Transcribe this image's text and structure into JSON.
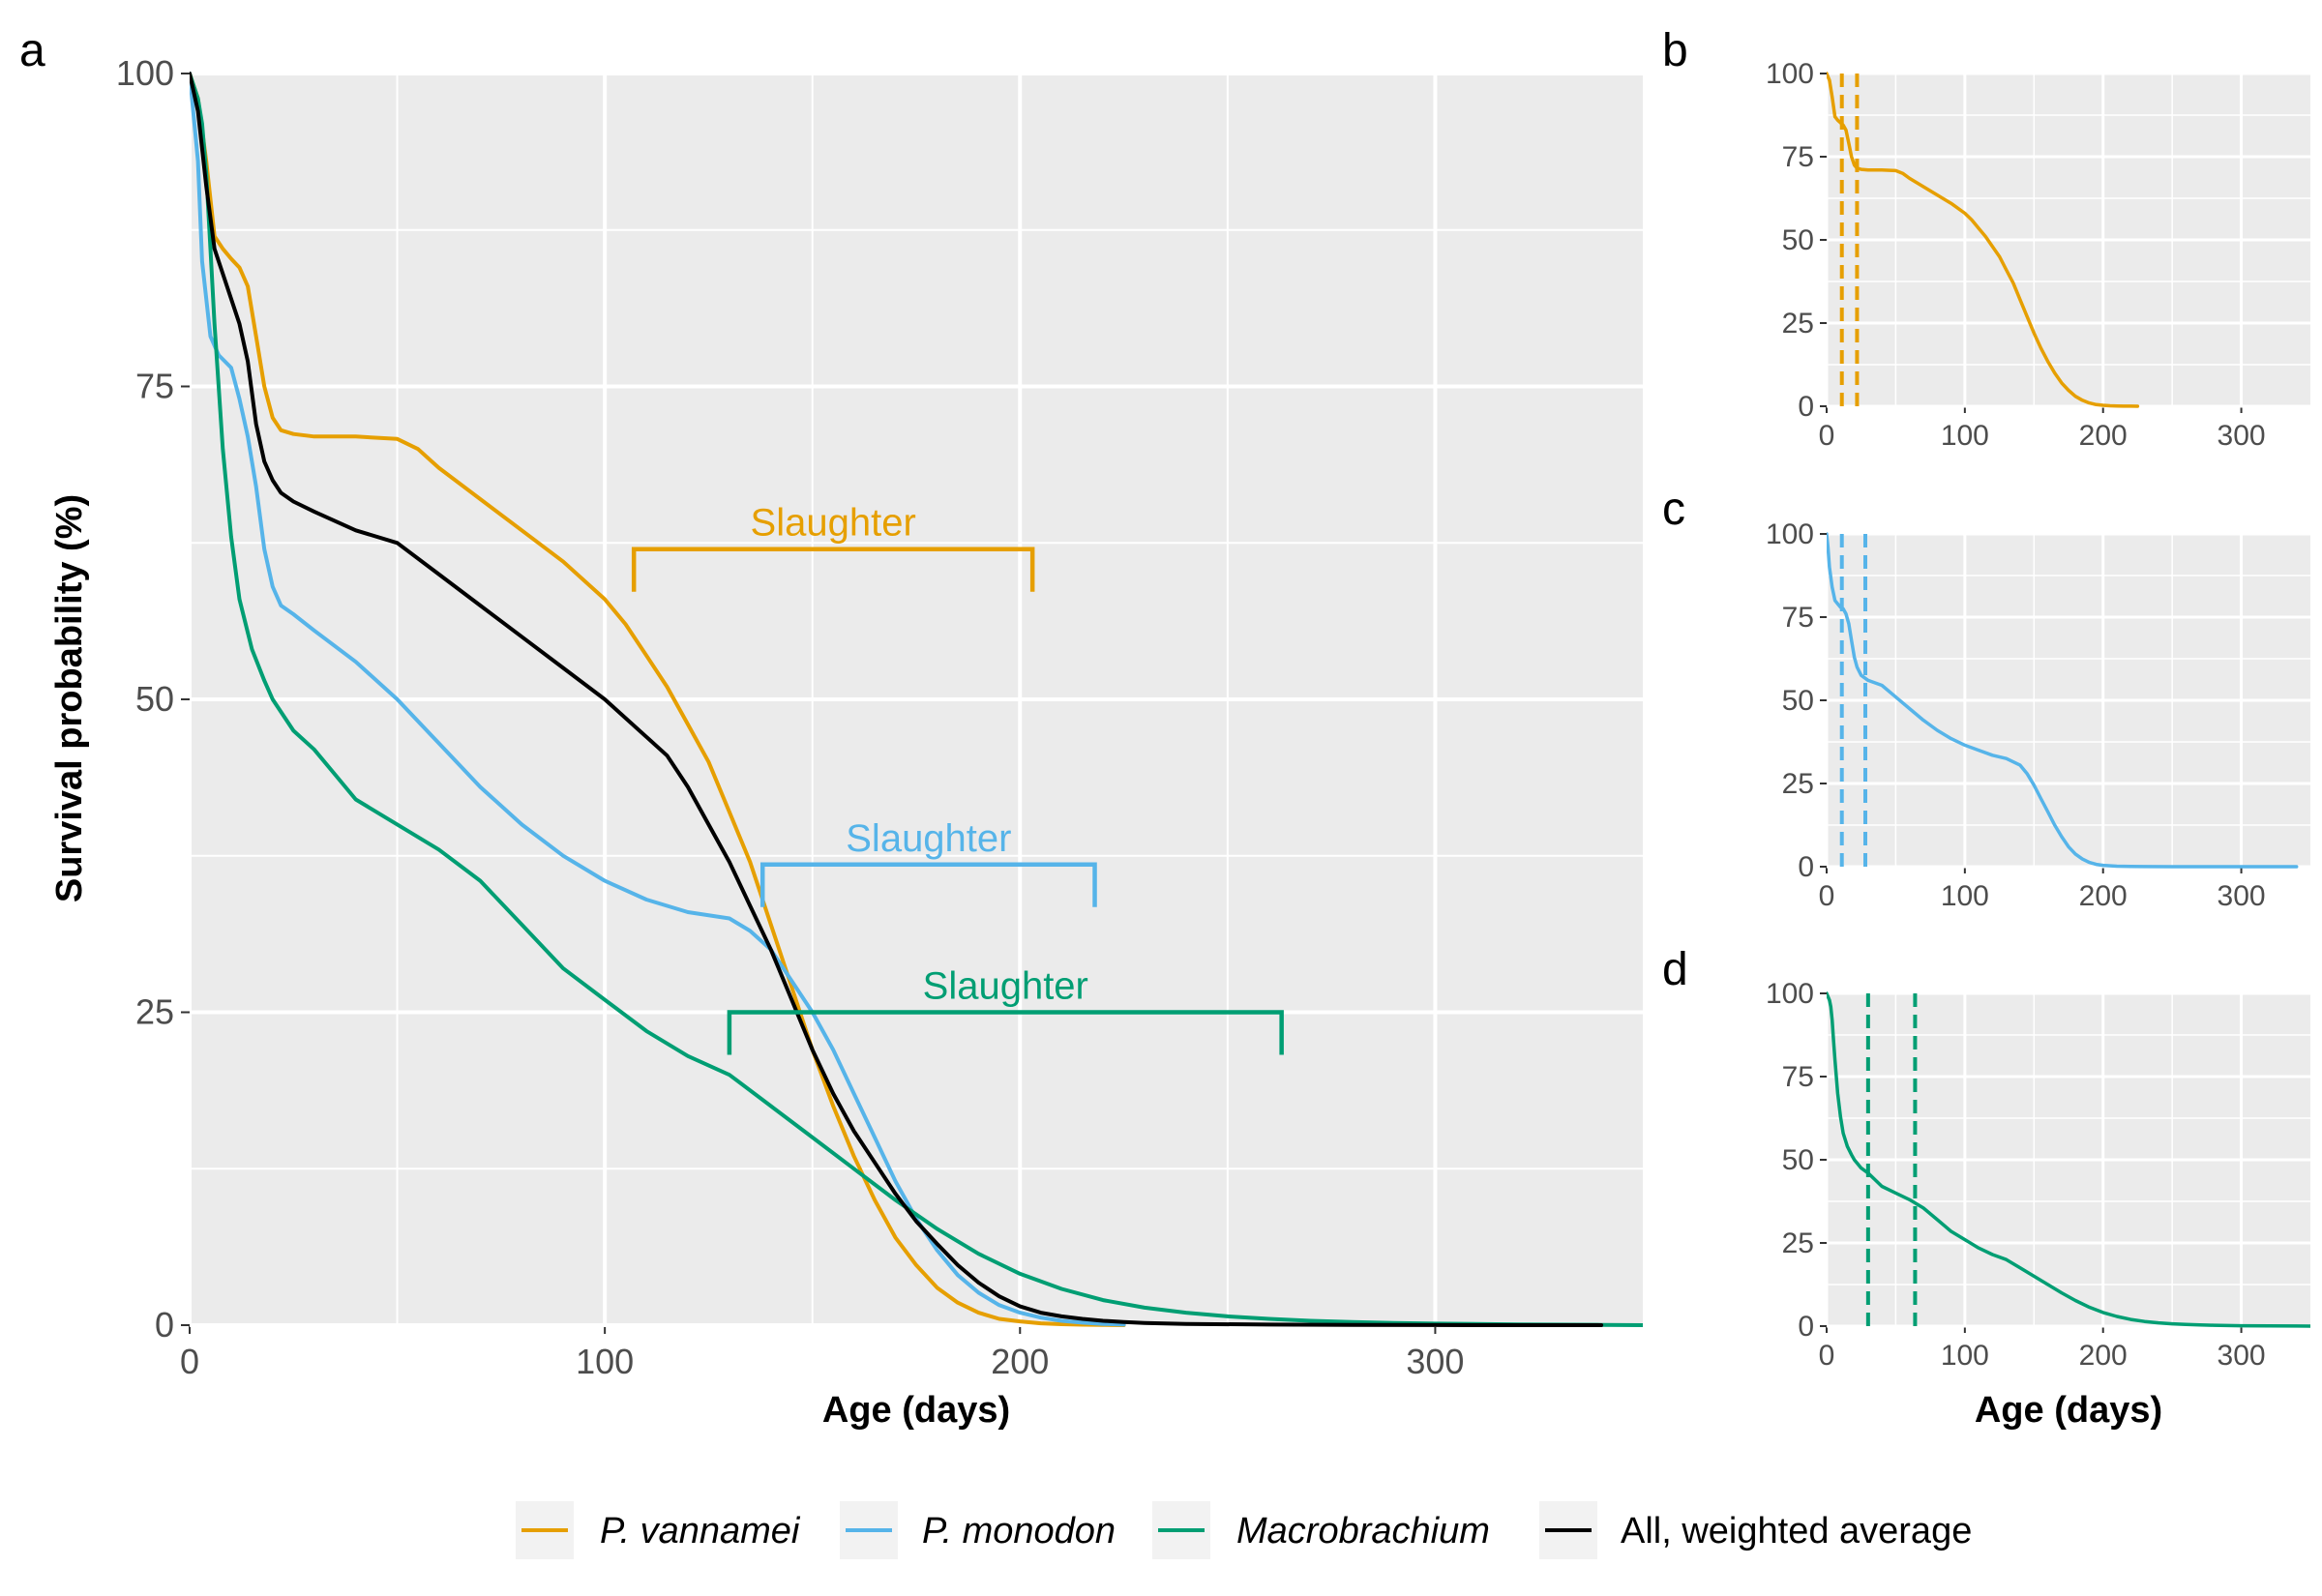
{
  "colors": {
    "vannamei": "#E69F00",
    "monodon": "#56B4E9",
    "macrobrachium": "#009E73",
    "average": "#000000",
    "panel_bg": "#EBEBEB",
    "grid": "#FFFFFF"
  },
  "legend": [
    {
      "key": "vannamei",
      "label": "P. vannamei",
      "italic": true
    },
    {
      "key": "monodon",
      "label": "P. monodon",
      "italic": true
    },
    {
      "key": "macrobrachium",
      "label": "Macrobrachium",
      "italic": true
    },
    {
      "key": "average",
      "label": "All, weighted average",
      "italic": false
    }
  ],
  "chart_data": [
    {
      "panel": "a",
      "type": "line",
      "xlabel": "Age (days)",
      "ylabel": "Survival probability (%)",
      "xlim": [
        0,
        350
      ],
      "ylim": [
        0,
        100
      ],
      "xticks": [
        0,
        100,
        200,
        300
      ],
      "yticks": [
        0,
        25,
        50,
        75,
        100
      ],
      "series": [
        {
          "key": "vannamei",
          "name": "P. vannamei",
          "x": [
            0,
            2,
            4,
            6,
            8,
            10,
            12,
            14,
            16,
            18,
            20,
            22,
            25,
            30,
            40,
            50,
            55,
            60,
            70,
            80,
            90,
            100,
            105,
            110,
            115,
            120,
            125,
            130,
            135,
            140,
            145,
            150,
            155,
            160,
            165,
            170,
            175,
            180,
            185,
            190,
            195,
            200,
            205,
            210,
            215,
            220,
            225
          ],
          "y": [
            100,
            98,
            93,
            87,
            86,
            85.2,
            84.5,
            83,
            79,
            75,
            72.5,
            71.5,
            71.2,
            71,
            71,
            70.8,
            70,
            68.5,
            66,
            63.5,
            61,
            58,
            56,
            53.5,
            51,
            48,
            45,
            41,
            37,
            32,
            27,
            22,
            17.5,
            13.5,
            10,
            7,
            4.8,
            3,
            1.8,
            1,
            0.5,
            0.3,
            0.15,
            0.08,
            0.04,
            0.02,
            0
          ]
        },
        {
          "key": "monodon",
          "name": "P. monodon",
          "x": [
            0,
            2,
            3,
            5,
            7,
            10,
            12,
            14,
            16,
            18,
            20,
            22,
            25,
            30,
            40,
            50,
            60,
            70,
            80,
            90,
            100,
            110,
            120,
            130,
            135,
            140,
            145,
            150,
            155,
            160,
            165,
            170,
            175,
            180,
            185,
            190,
            195,
            200,
            205,
            210,
            215,
            220,
            225
          ],
          "y": [
            100,
            93,
            85,
            79,
            77.5,
            76.5,
            74,
            71,
            67,
            62,
            59,
            57.5,
            56.8,
            55.5,
            53,
            50,
            46.5,
            43,
            40,
            37.5,
            35.5,
            34,
            33,
            32.5,
            31.5,
            30,
            27.5,
            25,
            22,
            18.5,
            15,
            11.5,
            8.5,
            6,
            4,
            2.6,
            1.6,
            1,
            0.6,
            0.35,
            0.2,
            0.1,
            0.05
          ]
        },
        {
          "key": "macrobrachium",
          "name": "Macrobrachium",
          "x": [
            0,
            2,
            3,
            4,
            5,
            6,
            8,
            10,
            12,
            15,
            18,
            20,
            25,
            30,
            35,
            40,
            50,
            60,
            70,
            80,
            90,
            100,
            110,
            120,
            130,
            140,
            150,
            160,
            170,
            180,
            190,
            200,
            210,
            220,
            230,
            240,
            250,
            260,
            270,
            280,
            290,
            300,
            320,
            340,
            350
          ],
          "y": [
            100,
            98,
            96,
            92,
            86,
            80,
            70,
            63,
            58,
            54,
            51.5,
            50,
            47.5,
            46,
            44,
            42,
            40,
            38,
            35.5,
            32,
            28.5,
            26,
            23.5,
            21.5,
            20,
            17.5,
            15,
            12.5,
            10,
            7.7,
            5.7,
            4.1,
            2.9,
            2,
            1.4,
            1,
            0.7,
            0.5,
            0.35,
            0.25,
            0.18,
            0.12,
            0.06,
            0.02,
            0
          ]
        },
        {
          "key": "average",
          "name": "All, weighted average",
          "x": [
            0,
            2,
            4,
            6,
            8,
            10,
            12,
            14,
            16,
            18,
            20,
            22,
            25,
            30,
            40,
            50,
            60,
            70,
            80,
            90,
            100,
            110,
            115,
            120,
            125,
            130,
            135,
            140,
            145,
            150,
            155,
            160,
            165,
            170,
            175,
            180,
            185,
            190,
            195,
            200,
            205,
            210,
            215,
            220,
            225,
            230,
            240,
            260,
            280,
            300,
            320,
            340
          ],
          "y": [
            100,
            97,
            91,
            86,
            84,
            82,
            80,
            77,
            72,
            69,
            67.5,
            66.5,
            65.8,
            65,
            63.5,
            62.5,
            60,
            57.5,
            55,
            52.5,
            50,
            47,
            45.5,
            43,
            40,
            37,
            33.5,
            30,
            26,
            22,
            18.5,
            15.5,
            13,
            10.5,
            8.3,
            6.5,
            4.8,
            3.4,
            2.3,
            1.5,
            1,
            0.7,
            0.5,
            0.35,
            0.25,
            0.18,
            0.1,
            0.05,
            0.02,
            0.01,
            0,
            0
          ]
        }
      ],
      "annotations": [
        {
          "key": "vannamei",
          "text": "Slaughter",
          "x_start": 107,
          "x_end": 203,
          "y": 62
        },
        {
          "key": "monodon",
          "text": "Slaughter",
          "x_start": 138,
          "x_end": 218,
          "y": 36.8
        },
        {
          "key": "macrobrachium",
          "text": "Slaughter",
          "x_start": 130,
          "x_end": 263,
          "y": 25
        }
      ]
    },
    {
      "panel": "b",
      "type": "line",
      "xlabel": "",
      "ylabel": "",
      "xlim": [
        0,
        350
      ],
      "ylim": [
        0,
        100
      ],
      "xticks": [
        0,
        100,
        200,
        300
      ],
      "yticks": [
        0,
        25,
        50,
        75,
        100
      ],
      "series": [
        {
          "key": "vannamei",
          "name": "P. vannamei",
          "x": [
            0,
            2,
            4,
            6,
            8,
            10,
            12,
            14,
            16,
            18,
            20,
            22,
            25,
            30,
            40,
            50,
            55,
            60,
            70,
            80,
            90,
            100,
            105,
            110,
            115,
            120,
            125,
            130,
            135,
            140,
            145,
            150,
            155,
            160,
            165,
            170,
            175,
            180,
            185,
            190,
            195,
            200,
            205,
            210,
            215,
            220,
            225
          ],
          "y": [
            100,
            98,
            93,
            87,
            86,
            85.2,
            84.5,
            83,
            79,
            75,
            72.5,
            71.5,
            71.2,
            71,
            71,
            70.8,
            70,
            68.5,
            66,
            63.5,
            61,
            58,
            56,
            53.5,
            51,
            48,
            45,
            41,
            37,
            32,
            27,
            22,
            17.5,
            13.5,
            10,
            7,
            4.8,
            3,
            1.8,
            1,
            0.5,
            0.3,
            0.15,
            0.08,
            0.04,
            0.02,
            0
          ]
        }
      ],
      "vlines": [
        11,
        22
      ]
    },
    {
      "panel": "c",
      "type": "line",
      "xlabel": "",
      "ylabel": "",
      "xlim": [
        0,
        350
      ],
      "ylim": [
        0,
        100
      ],
      "xticks": [
        0,
        100,
        200,
        300
      ],
      "yticks": [
        0,
        25,
        50,
        75,
        100
      ],
      "series": [
        {
          "key": "monodon",
          "name": "P. monodon",
          "x": [
            0,
            1,
            2,
            4,
            6,
            8,
            10,
            12,
            14,
            16,
            18,
            20,
            22,
            25,
            30,
            40,
            50,
            60,
            70,
            80,
            90,
            100,
            110,
            120,
            130,
            140,
            145,
            150,
            155,
            160,
            165,
            170,
            175,
            180,
            185,
            190,
            195,
            200,
            210,
            220,
            230,
            250,
            280,
            310,
            340
          ],
          "y": [
            100,
            96,
            90,
            84,
            80,
            79,
            78,
            77.5,
            76,
            73,
            68,
            63,
            60,
            57.5,
            56,
            54.5,
            51,
            47.5,
            44,
            41,
            38.5,
            36.5,
            35,
            33.5,
            32.5,
            30.5,
            28,
            24.5,
            20.5,
            16.5,
            12.5,
            9,
            6,
            3.8,
            2.3,
            1.3,
            0.7,
            0.4,
            0.15,
            0.05,
            0.02,
            0,
            0,
            0,
            0
          ]
        }
      ],
      "vlines": [
        11,
        28
      ]
    },
    {
      "panel": "d",
      "type": "line",
      "xlabel": "Age (days)",
      "ylabel": "",
      "xlim": [
        0,
        350
      ],
      "ylim": [
        0,
        100
      ],
      "xticks": [
        0,
        100,
        200,
        300
      ],
      "yticks": [
        0,
        25,
        50,
        75,
        100
      ],
      "series": [
        {
          "key": "macrobrachium",
          "name": "Macrobrachium",
          "x": [
            0,
            2,
            3,
            4,
            5,
            6,
            8,
            10,
            12,
            15,
            18,
            20,
            25,
            30,
            35,
            40,
            50,
            60,
            70,
            80,
            90,
            100,
            110,
            120,
            130,
            140,
            150,
            160,
            170,
            180,
            190,
            200,
            210,
            220,
            230,
            240,
            250,
            260,
            270,
            280,
            290,
            300,
            320,
            340,
            350
          ],
          "y": [
            100,
            98,
            96,
            92,
            86,
            80,
            70,
            63,
            58,
            54,
            51.5,
            50,
            47.5,
            46,
            44,
            42,
            40,
            38,
            35.5,
            32,
            28.5,
            26,
            23.5,
            21.5,
            20,
            17.5,
            15,
            12.5,
            10,
            7.7,
            5.7,
            4.1,
            2.9,
            2,
            1.4,
            1,
            0.7,
            0.5,
            0.35,
            0.25,
            0.18,
            0.12,
            0.06,
            0.02,
            0
          ]
        }
      ],
      "vlines": [
        30,
        64
      ]
    }
  ],
  "panel_labels": {
    "a": "a",
    "b": "b",
    "c": "c",
    "d": "d"
  },
  "axis_titles": {
    "x_main": "Age (days)",
    "y_main": "Survival probability (%)",
    "x_side": "Age (days)"
  }
}
